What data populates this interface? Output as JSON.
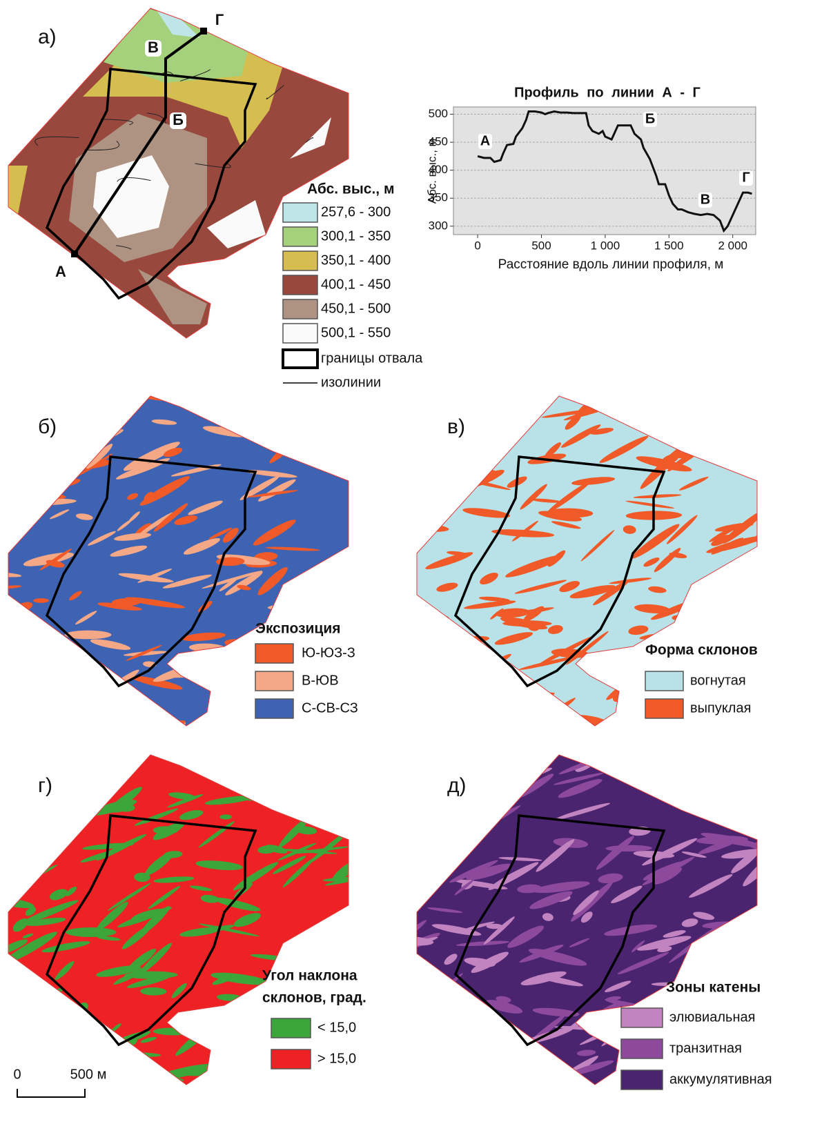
{
  "chart_data": {
    "type": "line",
    "title": "Профиль по линии А - Г",
    "ylabel": "Абс. выс., м",
    "xlabel": "Расстояние вдоль линии профиля, м",
    "x": [
      0,
      50,
      100,
      130,
      180,
      200,
      230,
      280,
      300,
      350,
      380,
      400,
      450,
      500,
      530,
      550,
      600,
      650,
      700,
      750,
      800,
      850,
      870,
      900,
      950,
      980,
      1000,
      1050,
      1080,
      1100,
      1150,
      1200,
      1230,
      1280,
      1300,
      1350,
      1400,
      1420,
      1470,
      1500,
      1530,
      1570,
      1600,
      1650,
      1700,
      1750,
      1800,
      1850,
      1900,
      1930,
      1960,
      2000,
      2050,
      2080,
      2120,
      2150
    ],
    "series": [
      {
        "name": "Профиль по линии А - Г",
        "color": "#111111",
        "values": [
          425,
          422,
          422,
          415,
          418,
          430,
          445,
          447,
          460,
          475,
          490,
          505,
          505,
          503,
          500,
          502,
          505,
          503,
          503,
          502,
          502,
          502,
          480,
          470,
          465,
          470,
          460,
          455,
          470,
          480,
          480,
          480,
          465,
          455,
          440,
          420,
          390,
          375,
          375,
          355,
          340,
          330,
          330,
          325,
          322,
          320,
          322,
          320,
          310,
          292,
          300,
          320,
          345,
          360,
          360,
          358
        ]
      }
    ],
    "xlim": [
      -190,
      2180
    ],
    "ylim": [
      285,
      513
    ],
    "xticks": [
      0,
      500,
      {
        "value": 1000,
        "label": "1 000"
      },
      {
        "value": 1500,
        "label": "1 500"
      },
      {
        "value": 2000,
        "label": "2 000"
      }
    ],
    "yticks": [
      300,
      350,
      400,
      450,
      500
    ],
    "grid": true,
    "background": "#e2e2e2",
    "annotations": [
      "А",
      "Б",
      "В",
      "Г"
    ]
  },
  "panels": [
    {
      "label": "а)",
      "legend": {
        "title": [
          "Абс. выс., м"
        ],
        "items": [
          {
            "label": "257,6 - 300",
            "color": "#bfe5e8"
          },
          {
            "label": "300,1 - 350",
            "color": "#a5d07c"
          },
          {
            "label": "350,1 - 400",
            "color": "#d6bd4f"
          },
          {
            "label": "400,1 - 450",
            "color": "#98483d"
          },
          {
            "label": "450,1 - 500",
            "color": "#ae9282"
          },
          {
            "label": "500,1 - 550",
            "color": "#fafafa"
          }
        ],
        "boundary": "границы отвала",
        "isolines": "изолинии"
      },
      "points": [
        "А",
        "Б",
        "В",
        "Г"
      ]
    },
    {
      "label": "б)",
      "legend": {
        "title": [
          "Экспозиция"
        ],
        "items": [
          {
            "label": "Ю-ЮЗ-З",
            "color": "#f05a28"
          },
          {
            "label": "В-ЮВ",
            "color": "#f5a886"
          },
          {
            "label": "С-СВ-СЗ",
            "color": "#3e63b3"
          }
        ]
      }
    },
    {
      "label": "в)",
      "legend": {
        "title": [
          "Форма склонов"
        ],
        "items": [
          {
            "label": "вогнутая",
            "color": "#b8e2e7"
          },
          {
            "label": "выпуклая",
            "color": "#f05a28"
          }
        ]
      }
    },
    {
      "label": "г)",
      "legend": {
        "title": [
          "Угол наклона",
          "склонов, град."
        ],
        "items": [
          {
            "label": "< 15,0",
            "color": "#3ca63a"
          },
          {
            "label": "> 15,0",
            "color": "#ee2224"
          }
        ]
      }
    },
    {
      "label": "д)",
      "legend": {
        "title": [
          "Зоны катены"
        ],
        "items": [
          {
            "label": "элювиальная",
            "color": "#c283c1"
          },
          {
            "label": "транзитная",
            "color": "#8d4a9d"
          },
          {
            "label": "аккумулятивная",
            "color": "#4a246f"
          }
        ]
      }
    }
  ],
  "scale_bar": {
    "start": "0",
    "end": "500 м"
  }
}
